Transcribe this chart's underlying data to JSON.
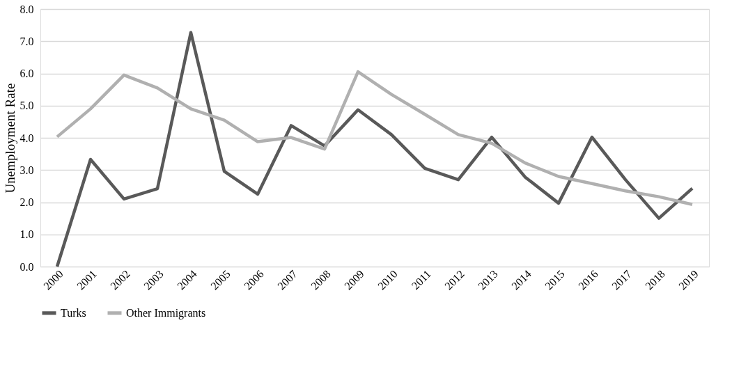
{
  "chart_data": {
    "type": "line",
    "ylabel": "Unemployment Rate",
    "categories": [
      "2000",
      "2001",
      "2002",
      "2003",
      "2004",
      "2005",
      "2006",
      "2007",
      "2008",
      "2009",
      "2010",
      "2011",
      "2012",
      "2013",
      "2014",
      "2015",
      "2016",
      "2017",
      "2018",
      "2019"
    ],
    "series": [
      {
        "name": "Turks",
        "color": "#595959",
        "values": [
          0.0,
          3.33,
          2.1,
          2.42,
          7.27,
          2.96,
          2.25,
          4.38,
          3.75,
          4.87,
          4.1,
          3.05,
          2.7,
          4.02,
          2.78,
          1.97,
          4.02,
          2.7,
          1.5,
          2.43
        ]
      },
      {
        "name": "Other Immigrants",
        "color": "#b0b0b0",
        "values": [
          4.03,
          4.9,
          5.95,
          5.55,
          4.9,
          4.55,
          3.88,
          4.01,
          3.65,
          6.05,
          5.35,
          4.73,
          4.1,
          3.83,
          3.22,
          2.8,
          2.58,
          2.35,
          2.17,
          1.93
        ]
      }
    ],
    "ylim": [
      0,
      8
    ],
    "yticks": [
      {
        "value": 0,
        "label": "0.0"
      },
      {
        "value": 1,
        "label": "1.0"
      },
      {
        "value": 2,
        "label": "2.0"
      },
      {
        "value": 3,
        "label": "3.0"
      },
      {
        "value": 4,
        "label": "4.0"
      },
      {
        "value": 5,
        "label": "5.0"
      },
      {
        "value": 6,
        "label": "6.0"
      },
      {
        "value": 7,
        "label": "7.0"
      },
      {
        "value": 8,
        "label": "8.0"
      }
    ],
    "grid": "y",
    "legend": "bottom",
    "marker": "none",
    "line_style": "solid"
  }
}
